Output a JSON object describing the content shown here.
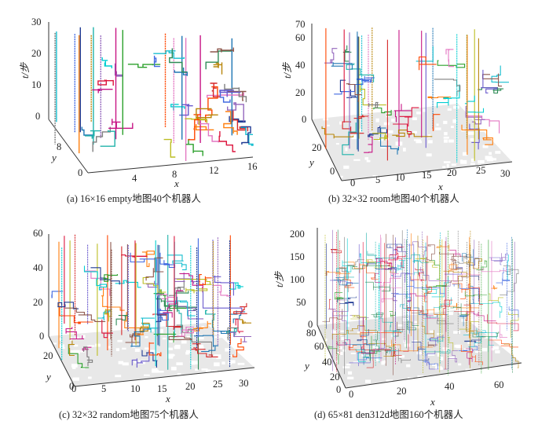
{
  "figure": {
    "panels": [
      {
        "id": "a",
        "caption": "(a) 16×16 empty地图40个机器人",
        "t_label": "t/步",
        "x_label": "x",
        "y_label": "y",
        "t_ticks": [
          "0",
          "10",
          "20",
          "30"
        ],
        "x_ticks": [
          "4",
          "8",
          "12",
          "16"
        ],
        "y_ticks": [
          "0",
          "8"
        ],
        "map": "16×16 empty",
        "robots": 40,
        "t_max": 30,
        "obstacles": false
      },
      {
        "id": "b",
        "caption": "(b) 32×32 room地图40个机器人",
        "t_label": "t/步",
        "x_label": "x",
        "y_label": "y",
        "t_ticks": [
          "0",
          "20",
          "40",
          "60",
          "70"
        ],
        "x_ticks": [
          "0",
          "5",
          "10",
          "15",
          "20",
          "25",
          "30"
        ],
        "y_ticks": [
          "0",
          "20"
        ],
        "map": "32×32 room",
        "robots": 40,
        "t_max": 70,
        "obstacles": true
      },
      {
        "id": "c",
        "caption": "(c) 32×32 random地图75个机器人",
        "t_label": "t/步",
        "x_label": "x",
        "y_label": "y",
        "t_ticks": [
          "0",
          "20",
          "40",
          "60"
        ],
        "x_ticks": [
          "0",
          "5",
          "10",
          "15",
          "20",
          "25",
          "30"
        ],
        "y_ticks": [
          "0",
          "20"
        ],
        "map": "32×32 random",
        "robots": 75,
        "t_max": 60,
        "obstacles": true
      },
      {
        "id": "d",
        "caption": "(d) 65×81 den312d地图160个机器人",
        "t_label": "t/步",
        "x_label": "x",
        "y_label": "y",
        "t_ticks": [
          "0",
          "50",
          "100",
          "150",
          "200"
        ],
        "x_ticks": [
          "0",
          "20",
          "40",
          "60"
        ],
        "y_ticks": [
          "0",
          "20",
          "40",
          "60",
          "80"
        ],
        "map": "65×81 den312d",
        "robots": 160,
        "t_max": 200,
        "obstacles": true
      }
    ]
  }
}
